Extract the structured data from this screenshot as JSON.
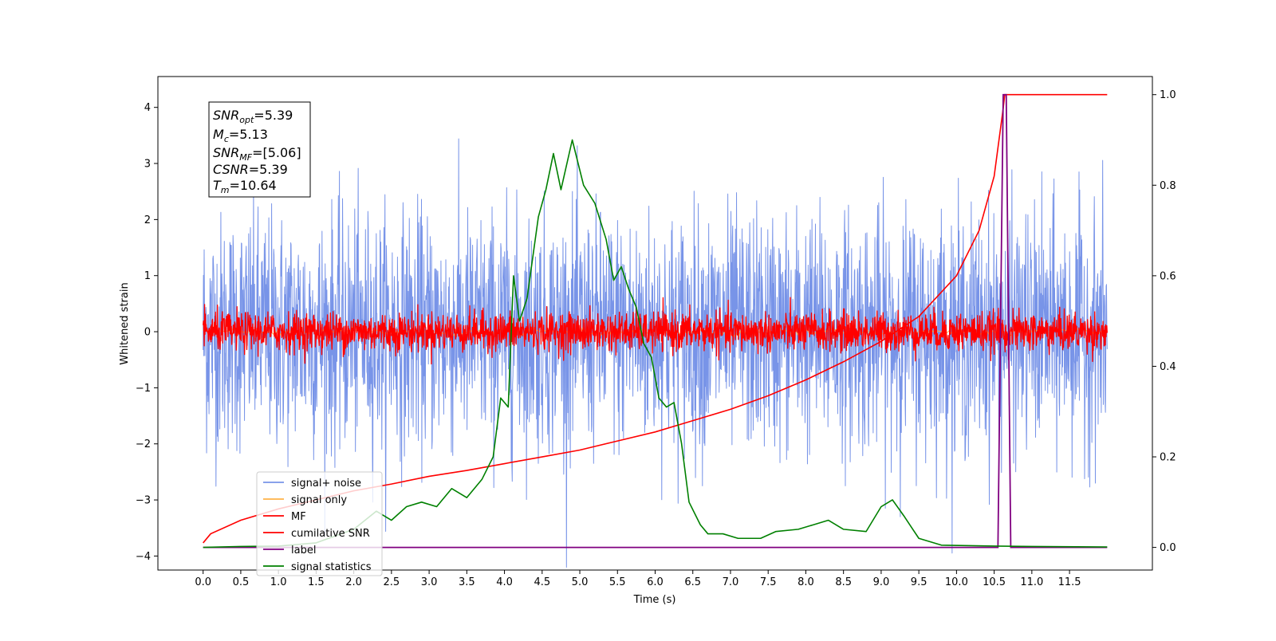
{
  "chart_data": {
    "type": "line",
    "xlabel": "Time (s)",
    "ylabel": "Whitened strain",
    "xlim": [
      -0.6,
      12.6
    ],
    "ylim": [
      -4.25,
      4.55
    ],
    "ylim_right": [
      -0.05,
      1.04
    ],
    "x_ticks": [
      "0.0",
      "0.5",
      "1.0",
      "1.5",
      "2.0",
      "2.5",
      "3.0",
      "3.5",
      "4.0",
      "4.5",
      "5.0",
      "5.5",
      "6.0",
      "6.5",
      "7.0",
      "7.5",
      "8.0",
      "8.5",
      "9.0",
      "9.5",
      "10.0",
      "10.5",
      "11.0",
      "11.5"
    ],
    "y_ticks_left": [
      "4",
      "3",
      "2",
      "1",
      "0",
      "−1",
      "−2",
      "−3",
      "−4"
    ],
    "y_ticks_right": [
      "1.0",
      "0.8",
      "0.6",
      "0.4",
      "0.2",
      "0.0"
    ],
    "grid": false,
    "legend_position": "lower-left",
    "annotation": {
      "snr_opt": {
        "main": "SNR",
        "sub": "opt",
        "value": "=5.39"
      },
      "mc": {
        "main": "M",
        "sub": "c",
        "value": "=5.13"
      },
      "snr_mf": {
        "main": "SNR",
        "sub": "MF",
        "value": "=[5.06]"
      },
      "csnr": {
        "main": "CSNR",
        "sub": "",
        "value": "=5.39"
      },
      "tm": {
        "main": "T",
        "sub": "m",
        "value": "=10.64"
      }
    },
    "series": [
      {
        "name": "signal+ noise",
        "color": "#7894e8",
        "axis": "left",
        "description_kind": "noise",
        "std": 1.05,
        "x_range": [
          0,
          12.0
        ]
      },
      {
        "name": "signal only",
        "color": "#ffb347",
        "axis": "left",
        "values_kind": "near-zero"
      },
      {
        "name": "MF",
        "color": "#ff0000",
        "axis": "left",
        "description_kind": "noise",
        "std": 0.17,
        "x_range": [
          0,
          12.0
        ]
      },
      {
        "name": "cumilative SNR",
        "color": "#ff0000",
        "axis": "right",
        "points": [
          [
            0.0,
            0.01
          ],
          [
            0.1,
            0.03
          ],
          [
            0.5,
            0.06
          ],
          [
            1.0,
            0.085
          ],
          [
            1.5,
            0.105
          ],
          [
            2.0,
            0.125
          ],
          [
            2.5,
            0.14
          ],
          [
            3.0,
            0.157
          ],
          [
            3.5,
            0.17
          ],
          [
            4.0,
            0.185
          ],
          [
            4.5,
            0.2
          ],
          [
            5.0,
            0.215
          ],
          [
            5.5,
            0.235
          ],
          [
            6.0,
            0.255
          ],
          [
            6.5,
            0.28
          ],
          [
            7.0,
            0.305
          ],
          [
            7.5,
            0.335
          ],
          [
            8.0,
            0.37
          ],
          [
            8.5,
            0.41
          ],
          [
            9.0,
            0.455
          ],
          [
            9.5,
            0.51
          ],
          [
            10.0,
            0.6
          ],
          [
            10.3,
            0.7
          ],
          [
            10.5,
            0.82
          ],
          [
            10.62,
            0.97
          ],
          [
            10.64,
            1.0
          ],
          [
            12.0,
            1.0
          ]
        ]
      },
      {
        "name": "label",
        "color": "#800080",
        "axis": "right",
        "points": [
          [
            0.0,
            0.0
          ],
          [
            10.55,
            0.0
          ],
          [
            10.62,
            1.0
          ],
          [
            10.66,
            1.0
          ],
          [
            10.72,
            0.0
          ],
          [
            12.0,
            0.0
          ]
        ]
      },
      {
        "name": "signal statistics",
        "color": "#008000",
        "axis": "right",
        "points": [
          [
            0.0,
            0.0
          ],
          [
            0.5,
            0.002
          ],
          [
            1.0,
            0.003
          ],
          [
            1.5,
            0.01
          ],
          [
            2.0,
            0.04
          ],
          [
            2.3,
            0.08
          ],
          [
            2.5,
            0.06
          ],
          [
            2.7,
            0.09
          ],
          [
            2.9,
            0.1
          ],
          [
            3.1,
            0.09
          ],
          [
            3.3,
            0.13
          ],
          [
            3.5,
            0.11
          ],
          [
            3.7,
            0.15
          ],
          [
            3.85,
            0.2
          ],
          [
            3.95,
            0.33
          ],
          [
            4.05,
            0.31
          ],
          [
            4.12,
            0.6
          ],
          [
            4.2,
            0.5
          ],
          [
            4.3,
            0.55
          ],
          [
            4.45,
            0.73
          ],
          [
            4.55,
            0.79
          ],
          [
            4.65,
            0.87
          ],
          [
            4.75,
            0.79
          ],
          [
            4.9,
            0.9
          ],
          [
            5.05,
            0.8
          ],
          [
            5.2,
            0.76
          ],
          [
            5.35,
            0.68
          ],
          [
            5.45,
            0.59
          ],
          [
            5.55,
            0.62
          ],
          [
            5.65,
            0.57
          ],
          [
            5.75,
            0.53
          ],
          [
            5.85,
            0.45
          ],
          [
            5.95,
            0.42
          ],
          [
            6.05,
            0.33
          ],
          [
            6.15,
            0.31
          ],
          [
            6.25,
            0.32
          ],
          [
            6.35,
            0.23
          ],
          [
            6.45,
            0.1
          ],
          [
            6.6,
            0.05
          ],
          [
            6.7,
            0.03
          ],
          [
            6.9,
            0.03
          ],
          [
            7.1,
            0.02
          ],
          [
            7.4,
            0.02
          ],
          [
            7.6,
            0.035
          ],
          [
            7.9,
            0.04
          ],
          [
            8.1,
            0.05
          ],
          [
            8.3,
            0.06
          ],
          [
            8.5,
            0.04
          ],
          [
            8.8,
            0.035
          ],
          [
            9.0,
            0.09
          ],
          [
            9.15,
            0.105
          ],
          [
            9.3,
            0.07
          ],
          [
            9.5,
            0.02
          ],
          [
            9.8,
            0.005
          ],
          [
            10.5,
            0.003
          ],
          [
            11.0,
            0.002
          ],
          [
            12.0,
            0.001
          ]
        ]
      }
    ]
  }
}
